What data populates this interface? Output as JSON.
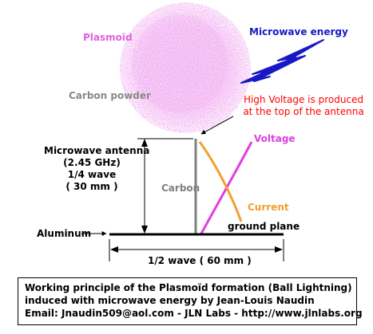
{
  "labels": {
    "plasmoid": "Plasmoïd",
    "microwave_energy": "Microwave energy",
    "carbon_powder": "Carbon powder",
    "high_voltage_line1": "High Voltage is produced",
    "high_voltage_line2": "at the top of the antenna",
    "voltage": "Voltage",
    "microwave_antenna": "Microwave antenna",
    "frequency": "(2.45 GHz)",
    "quarter_wave": "1/4 wave",
    "quarter_wave_mm": "( 30 mm )",
    "carbon": "Carbon",
    "current": "Current",
    "aluminum": "Aluminum",
    "ground_plane": "ground plane",
    "half_wave": "1/2 wave ( 60 mm )"
  },
  "caption": {
    "line1": "Working principle of the Plasmoïd formation (Ball Lightning)",
    "line2": "induced with microwave energy by Jean-Louis Naudin",
    "line3": "Email: Jnaudin509@aol.com - JLN Labs - http://www.jlnlabs.org"
  },
  "colors": {
    "plasmoid": "#e060e0",
    "microwave": "#1818c8",
    "carbon_powder": "#888888",
    "high_voltage": "#ff0000",
    "voltage": "#e040e0",
    "current": "#f0a030",
    "carbon": "#808080",
    "lines": "#000000"
  }
}
